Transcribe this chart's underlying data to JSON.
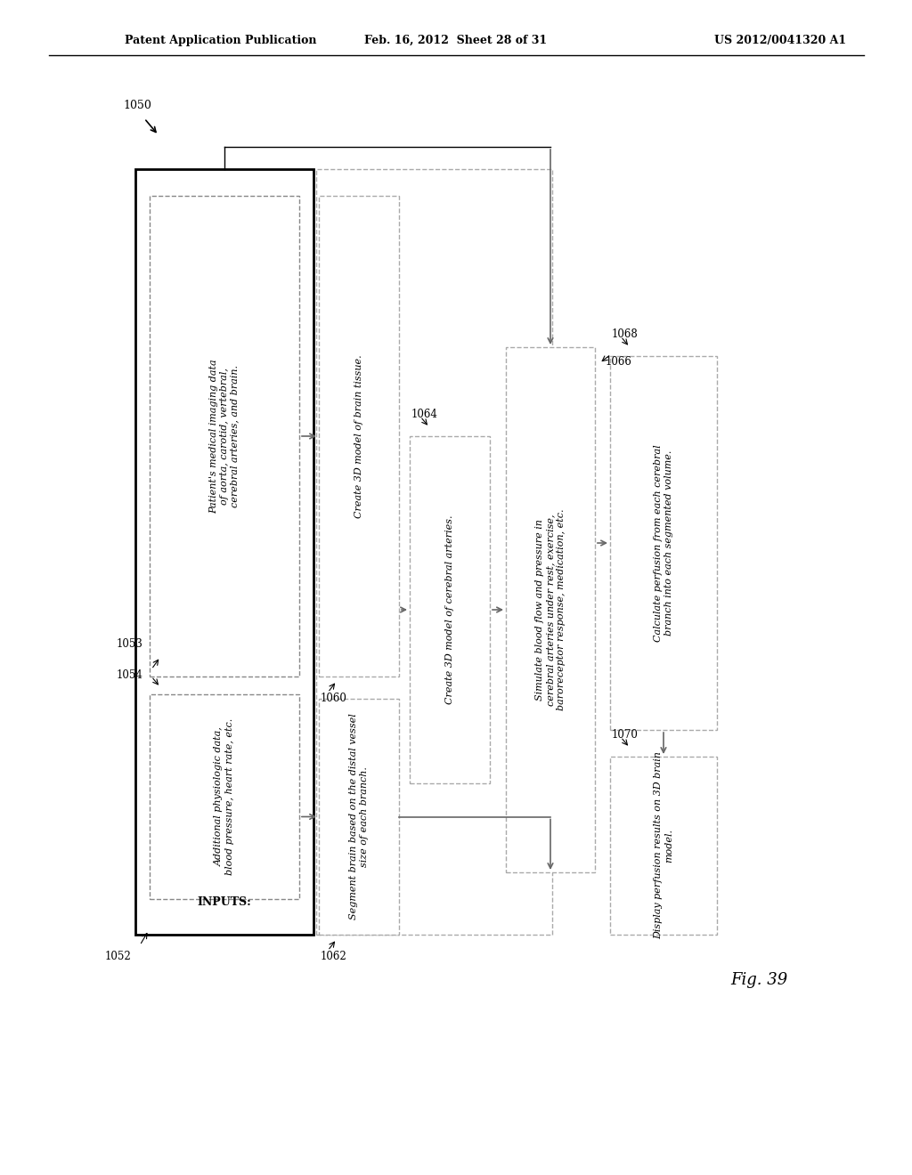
{
  "header_left": "Patent Application Publication",
  "header_mid": "Feb. 16, 2012  Sheet 28 of 31",
  "header_right": "US 2012/0041320 A1",
  "fig_label": "Fig. 39",
  "bg_color": "#ffffff",
  "label_1050": "1050",
  "label_1052": "1052",
  "label_1053": "1053",
  "label_1054": "1054",
  "label_1060": "1060",
  "label_1062": "1062",
  "label_1064": "1064",
  "label_1066": "1066",
  "label_1068": "1068",
  "label_1070": "1070",
  "text_inputs": "INPUTS:",
  "text_1053": "Patient's medical imaging data\nof aorta, carotid, vertebral,\ncerebral arteries, and brain.",
  "text_1054": "Additional physiologic data,\nblood pressure, heart rate, etc.",
  "text_1060": "Create 3D model of brain tissue.",
  "text_1062": "Segment brain based on the distal vessel\nsize of each branch.",
  "text_1064": "Create 3D model of cerebral arteries.",
  "text_1066": "Simulate blood flow and pressure in\ncerebral arteries under rest, exercise,\nbaroreceptor response, medication, etc.",
  "text_1068": "Calculate perfusion from each cerebral\nbranch into each segmented volume.",
  "text_1070": "Display perfusion results on 3D brain\nmodel."
}
